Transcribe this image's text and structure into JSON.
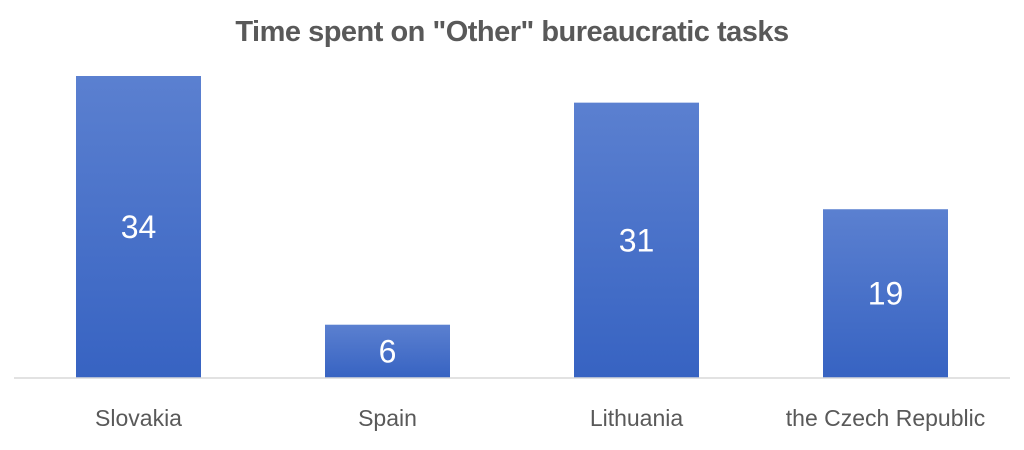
{
  "chart_data": {
    "type": "bar",
    "title": "Time spent on \"Other\" bureaucratic tasks",
    "categories": [
      "Slovakia",
      "Spain",
      "Lithuania",
      "the Czech Republic"
    ],
    "values": [
      34,
      6,
      31,
      19
    ],
    "value_labels": [
      "34",
      "6",
      "31",
      "19"
    ],
    "xlabel": "",
    "ylabel": "",
    "ylim": [
      0,
      34
    ],
    "grid": false,
    "legend": "none",
    "bar_color_top": "#5b80d0",
    "bar_color_bottom": "#3763c2",
    "axis_color": "#d9d9d9",
    "text_color": "#595959",
    "label_color": "#ffffff"
  }
}
